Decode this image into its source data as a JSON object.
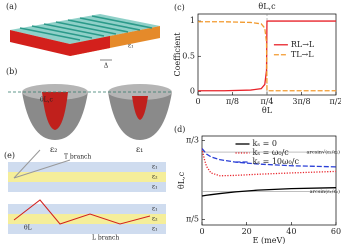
{
  "diagram": {
    "a": {
      "label": "(a)",
      "eps": "ε₁",
      "gap": "Δ"
    },
    "b": {
      "label": "(b)",
      "angle": "θL,c",
      "left": "ε₂",
      "right": "ε₁"
    },
    "e": {
      "label": "(e)",
      "top_branch": "T branch",
      "top_layers": [
        "ε₁",
        "ε₂",
        "ε₁"
      ],
      "angle": "θL",
      "bottom_branch": "L branch",
      "bottom_layers": [
        "ε₁",
        "ε₂",
        "ε₁"
      ]
    }
  },
  "chart_data": [
    {
      "type": "line",
      "label": "(c)",
      "title": "θL,c",
      "ylabel": "Coefficient",
      "xlabel": "θL",
      "x": [
        0,
        0.3,
        0.6,
        0.72,
        0.76,
        0.78,
        0.785,
        0.79,
        0.8,
        1.0,
        1.3,
        1.5708
      ],
      "series": [
        {
          "name": "RL→L",
          "color": "#e8232a",
          "style": "solid",
          "values": [
            0.01,
            0.01,
            0.02,
            0.04,
            0.1,
            0.3,
            1,
            1,
            1,
            1,
            1,
            1
          ]
        },
        {
          "name": "TL→L",
          "color": "#f29a2e",
          "style": "dashed",
          "values": [
            0.99,
            0.99,
            0.98,
            0.96,
            0.9,
            0.7,
            0.02,
            0.01,
            0.01,
            0.01,
            0.01,
            0.01
          ]
        }
      ],
      "xlim": [
        0,
        1.5708
      ],
      "ylim": [
        -0.05,
        1.1
      ],
      "xticks": [
        0,
        {
          "value": 0.3927,
          "label": "π/8"
        },
        {
          "value": 0.7854,
          "label": "π/4"
        },
        {
          "value": 1.1781,
          "label": "3π/8"
        },
        {
          "value": 1.5708,
          "label": "π/2"
        }
      ],
      "yticks": [
        0,
        0.5,
        1
      ],
      "vline": 0.7854,
      "legend": "right"
    },
    {
      "type": "line",
      "label": "(d)",
      "ylabel": "θL,c",
      "xlabel": "E (meV)",
      "x": [
        0,
        1,
        2,
        4,
        8,
        15,
        25,
        40,
        60
      ],
      "series": [
        {
          "name": "kₛ = 0",
          "color": "#000000",
          "style": "solid",
          "values": [
            0.753,
            0.755,
            0.757,
            0.76,
            0.766,
            0.775,
            0.784,
            0.792,
            0.797
          ]
        },
        {
          "name": "kₛ = ω₀/c",
          "color": "#e8232a",
          "style": "dotted",
          "values": [
            1.004,
            0.95,
            0.91,
            0.875,
            0.86,
            0.862,
            0.868,
            0.875,
            0.883
          ]
        },
        {
          "name": "kₛ = 10ω₀/c",
          "color": "#2a3fd6",
          "style": "dashed",
          "values": [
            1.004,
            0.99,
            0.975,
            0.96,
            0.945,
            0.932,
            0.922,
            0.913,
            0.907
          ]
        }
      ],
      "xlim": [
        0,
        60
      ],
      "ylim": [
        0.6,
        1.07
      ],
      "xticks": [
        0,
        20,
        40,
        60
      ],
      "yticks": [
        {
          "value": 0.6283,
          "label": "π/5"
        },
        {
          "value": 1.0472,
          "label": "π/3"
        }
      ],
      "hlines": [
        {
          "value": 0.985,
          "label": "arcsin√(ε₁/ε₂)"
        },
        {
          "value": 0.777,
          "label": "arcsin(ε₁/ε₂)"
        }
      ],
      "legend": "upper right"
    }
  ]
}
